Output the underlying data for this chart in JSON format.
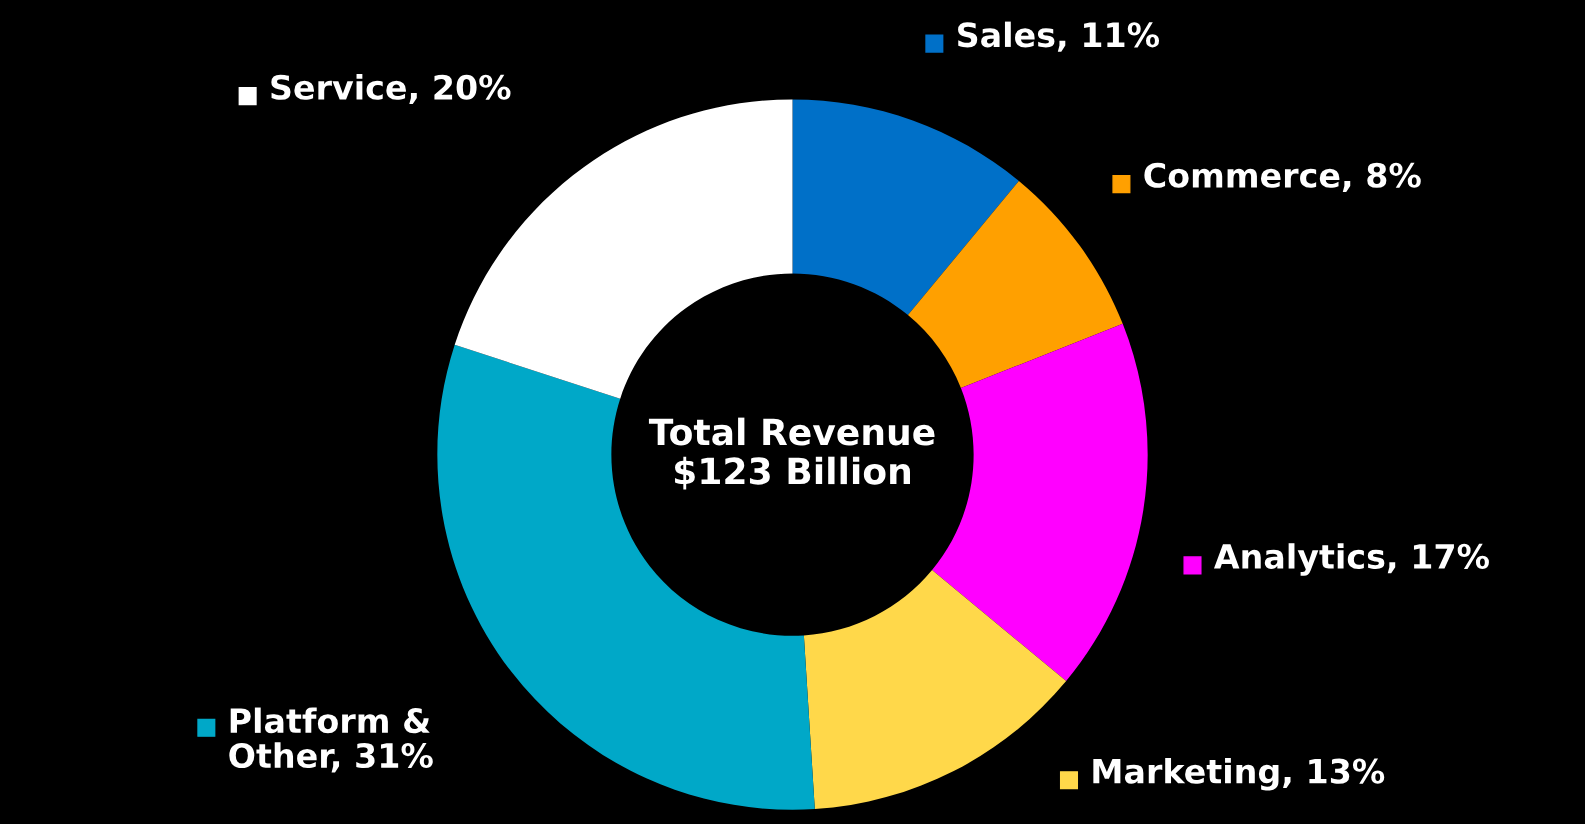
{
  "chart_data": {
    "type": "donut",
    "title": "Total Revenue\n$123 Billion",
    "categories": [
      "Sales",
      "Commerce",
      "Analytics",
      "Marketing",
      "Platform &\nOther",
      "Service"
    ],
    "values": [
      11,
      8,
      17,
      13,
      31,
      20
    ],
    "value_labels": [
      "11%",
      "8%",
      "17%",
      "13%",
      "31%",
      "20%"
    ],
    "legend": "right",
    "colors": [
      "#0070c8",
      "#ffa000",
      "#ff00ff",
      "#ffd84a",
      "#00a8c8",
      "#ffffff"
    ]
  }
}
